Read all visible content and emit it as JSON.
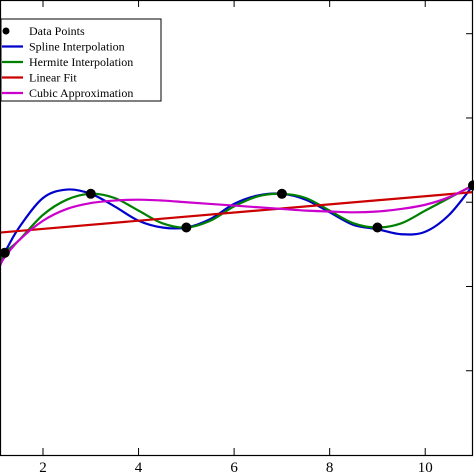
{
  "chart_data": {
    "type": "line",
    "title": "",
    "xlabel": "",
    "ylabel": "",
    "xlim": [
      1.1,
      11.0
    ],
    "ylim": [
      -3.0,
      2.4
    ],
    "xticks": [
      2,
      4,
      6,
      8,
      10
    ],
    "xtick_labels": [
      "2",
      "4",
      "6",
      "8",
      "10"
    ],
    "grid": false,
    "legend_position": "top-left",
    "points": {
      "name": "Data Points",
      "color": "#000000",
      "x": [
        1.2,
        3.0,
        5.0,
        7.0,
        9.0,
        11.0
      ],
      "y": [
        -0.6,
        0.1,
        -0.3,
        0.1,
        -0.3,
        0.2
      ]
    },
    "series": [
      {
        "name": "Spline Interpolation",
        "color": "#0000cc",
        "x": [
          1.1,
          1.2,
          1.5,
          2.0,
          2.5,
          3.0,
          3.5,
          4.0,
          4.5,
          5.0,
          5.5,
          6.0,
          6.5,
          7.0,
          7.5,
          8.0,
          8.5,
          9.0,
          9.5,
          10.0,
          10.5,
          11.0
        ],
        "y": [
          -0.75,
          -0.6,
          -0.3,
          0.05,
          0.15,
          0.1,
          -0.05,
          -0.22,
          -0.3,
          -0.3,
          -0.2,
          -0.02,
          0.08,
          0.1,
          0.03,
          -0.12,
          -0.27,
          -0.32,
          -0.38,
          -0.35,
          -0.15,
          0.2
        ]
      },
      {
        "name": "Hermite Interpolation",
        "color": "#008000",
        "x": [
          1.1,
          1.2,
          1.5,
          2.0,
          2.5,
          3.0,
          3.5,
          4.0,
          4.5,
          5.0,
          5.5,
          6.0,
          6.5,
          7.0,
          7.5,
          8.0,
          8.5,
          9.0,
          9.5,
          10.0,
          10.5,
          11.0
        ],
        "y": [
          -0.7,
          -0.6,
          -0.45,
          -0.15,
          0.03,
          0.1,
          0.05,
          -0.1,
          -0.25,
          -0.3,
          -0.22,
          -0.05,
          0.07,
          0.1,
          0.05,
          -0.1,
          -0.25,
          -0.3,
          -0.25,
          -0.1,
          0.05,
          0.2
        ]
      },
      {
        "name": "Linear Fit",
        "color": "#cc0000",
        "x": [
          1.1,
          11.0
        ],
        "y": [
          -0.36,
          0.12
        ]
      },
      {
        "name": "Cubic Approximation",
        "color": "#cc00cc",
        "x": [
          1.1,
          1.2,
          1.5,
          2.0,
          2.5,
          3.0,
          3.5,
          4.0,
          4.5,
          5.0,
          5.5,
          6.0,
          6.5,
          7.0,
          7.5,
          8.0,
          8.5,
          9.0,
          9.5,
          10.0,
          10.5,
          11.0
        ],
        "y": [
          -0.75,
          -0.65,
          -0.45,
          -0.22,
          -0.08,
          -0.01,
          0.02,
          0.03,
          0.02,
          0.0,
          -0.02,
          -0.04,
          -0.06,
          -0.08,
          -0.1,
          -0.11,
          -0.12,
          -0.11,
          -0.08,
          -0.03,
          0.06,
          0.2
        ]
      }
    ]
  }
}
